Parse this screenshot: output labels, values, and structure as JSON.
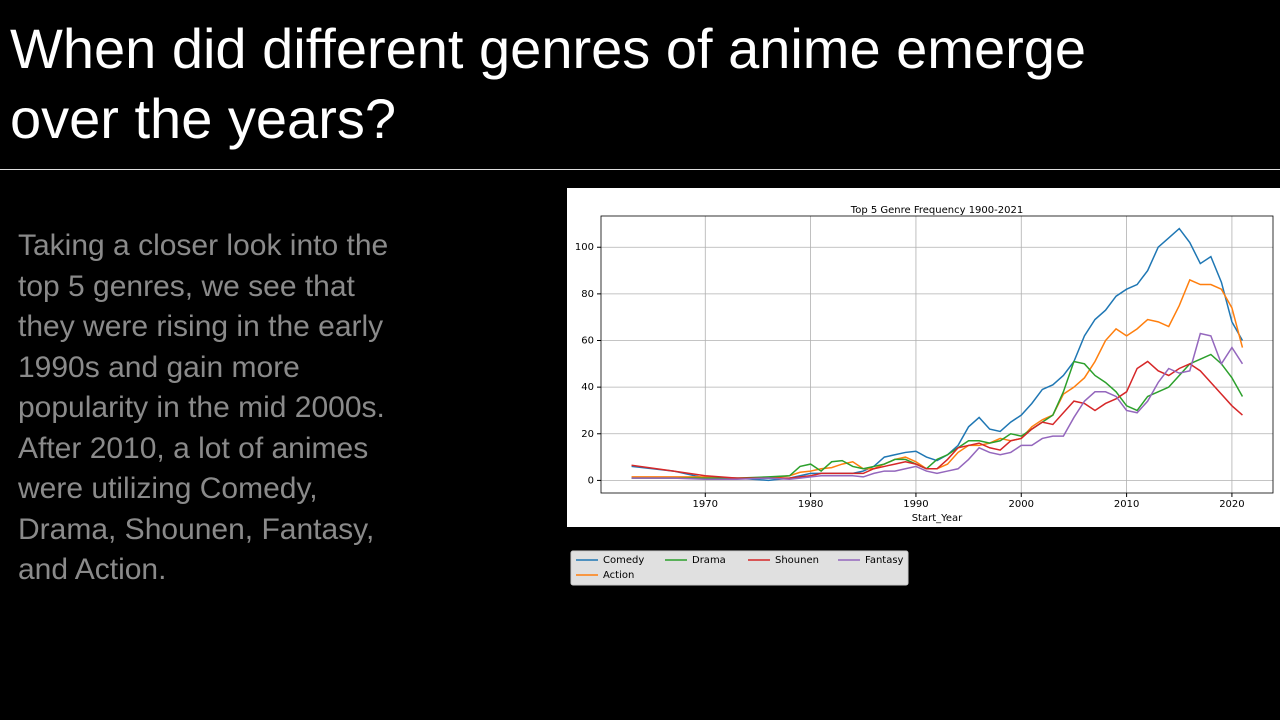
{
  "slide": {
    "title_lines": [
      "When did different genres of anime emerge",
      "over the years?"
    ],
    "body_lines": [
      "Taking a closer look into the",
      "top 5 genres, we see that",
      "they were rising in the early",
      "1990s and gain more",
      "popularity in the mid 2000s.",
      "After 2010, a lot of animes",
      "were utilizing Comedy,",
      "Drama, Shounen, Fantasy,",
      "and Action."
    ]
  },
  "chart_data": {
    "type": "line",
    "title": "Top 5 Genre Frequency 1900-2021",
    "x_label": "Start_Year",
    "x": [
      1963,
      1967,
      1970,
      1973,
      1976,
      1978,
      1979,
      1980,
      1981,
      1982,
      1983,
      1984,
      1985,
      1986,
      1987,
      1988,
      1989,
      1990,
      1991,
      1992,
      1993,
      1994,
      1995,
      1996,
      1997,
      1998,
      1999,
      2000,
      2001,
      2002,
      2003,
      2004,
      2005,
      2006,
      2007,
      2008,
      2009,
      2010,
      2011,
      2012,
      2013,
      2014,
      2015,
      2016,
      2017,
      2018,
      2019,
      2020,
      2021
    ],
    "series": [
      {
        "name": "Comedy",
        "color": "#1f77b4",
        "values": [
          6,
          4,
          1,
          1,
          0,
          1,
          2,
          3,
          3,
          3,
          3,
          3,
          4,
          6,
          10,
          11,
          12,
          12.5,
          10,
          8.5,
          11,
          15,
          23,
          27,
          22,
          21,
          25,
          28,
          33,
          39,
          41,
          45,
          51,
          62,
          69,
          73,
          79,
          82,
          84,
          90,
          100,
          104,
          108,
          102,
          93,
          96,
          85,
          68,
          60
        ]
      },
      {
        "name": "Action",
        "color": "#ff7f0e",
        "values": [
          1.5,
          1.5,
          1.5,
          1,
          1,
          2,
          3.5,
          4,
          5,
          5.5,
          7,
          8,
          5,
          5,
          7,
          9,
          10,
          8,
          5,
          5,
          7,
          12,
          15,
          15,
          16,
          18,
          17,
          18,
          23,
          26,
          28,
          37,
          40,
          44,
          51,
          60,
          65,
          62,
          65,
          69,
          68,
          66,
          75,
          86,
          84,
          84,
          82,
          74,
          57
        ]
      },
      {
        "name": "Drama",
        "color": "#2ca02c",
        "values": [
          1,
          1,
          1,
          1,
          1.5,
          2,
          6,
          7,
          4,
          8,
          8.5,
          6,
          5,
          6,
          7,
          9,
          9,
          7,
          5,
          9,
          11,
          14,
          17,
          17,
          16,
          17,
          20,
          19,
          22,
          25,
          28,
          38,
          51,
          50,
          45,
          42,
          38,
          32,
          30,
          36,
          38,
          40,
          45,
          50,
          52,
          54,
          50,
          44,
          36
        ]
      },
      {
        "name": "Shounen",
        "color": "#d62728",
        "values": [
          6.5,
          4,
          2,
          1,
          1,
          1,
          1.5,
          2,
          3,
          3,
          3,
          3,
          3,
          5,
          6,
          7,
          8,
          7,
          5,
          5,
          9,
          14,
          15,
          16,
          14,
          13,
          17,
          18,
          22,
          25,
          24,
          29,
          34,
          33,
          30,
          33,
          35,
          38,
          48,
          51,
          47,
          45,
          48,
          50,
          47,
          42,
          37,
          32,
          28
        ]
      },
      {
        "name": "Fantasy",
        "color": "#9467bd",
        "values": [
          1,
          1,
          0.5,
          0.5,
          1,
          0.5,
          1,
          1.5,
          2,
          2,
          2,
          2,
          1.5,
          3,
          4,
          4,
          5,
          6,
          4,
          3,
          4,
          5,
          9,
          14,
          12,
          11,
          12,
          15,
          15,
          18,
          19,
          19,
          27,
          34,
          38,
          38,
          36,
          30,
          29,
          34,
          42,
          48,
          46,
          47,
          63,
          62,
          50,
          57,
          50
        ]
      }
    ],
    "xlim": [
      1960.1,
      2023.9
    ],
    "xticks": [
      1970,
      1980,
      1990,
      2000,
      2010,
      2020
    ],
    "ylim": [
      -5.4,
      113.4
    ],
    "yticks": [
      0,
      20,
      40,
      60,
      80,
      100
    ],
    "grid": true
  }
}
